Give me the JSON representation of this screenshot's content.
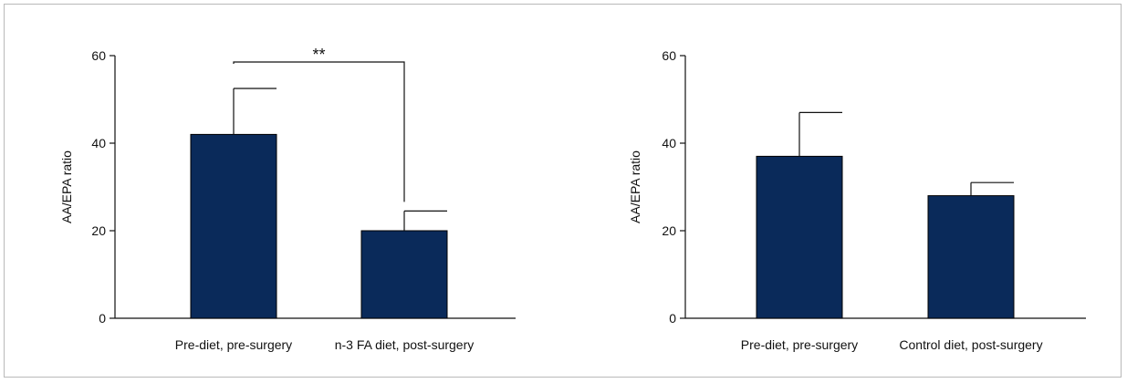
{
  "chart_data": [
    {
      "type": "bar",
      "ylabel": "AA/EPA ratio",
      "ylim": [
        0,
        60
      ],
      "yticks": [
        0,
        20,
        40,
        60
      ],
      "categories": [
        "Pre-diet, pre-surgery",
        "n-3 FA diet, post-surgery"
      ],
      "values": [
        42,
        20
      ],
      "errors": [
        10.5,
        4.5
      ],
      "bar_color": "#0a2a5a",
      "significance": {
        "between": [
          0,
          1
        ],
        "label": "**"
      }
    },
    {
      "type": "bar",
      "ylabel": "AA/EPA ratio",
      "ylim": [
        0,
        60
      ],
      "yticks": [
        0,
        20,
        40,
        60
      ],
      "categories": [
        "Pre-diet, pre-surgery",
        "Control diet, post-surgery"
      ],
      "values": [
        37,
        28
      ],
      "errors": [
        10,
        3
      ],
      "bar_color": "#0a2a5a"
    }
  ]
}
